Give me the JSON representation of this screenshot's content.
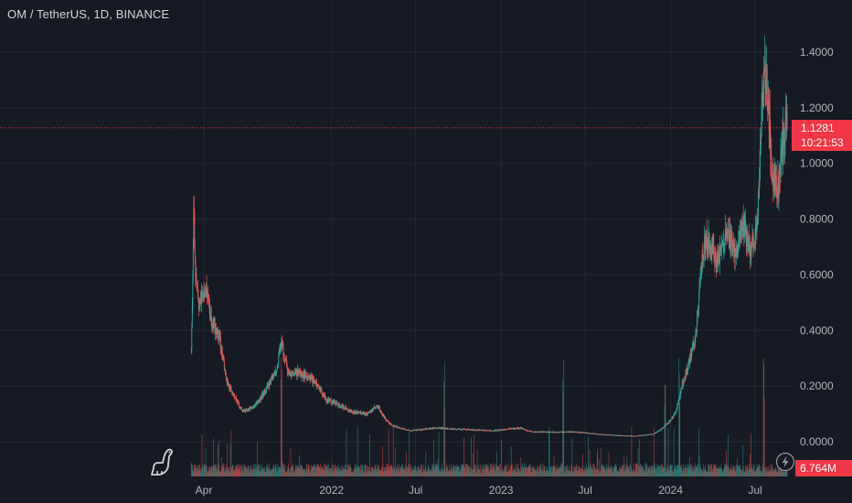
{
  "header": {
    "title": "OM / TetherUS, 1D, BINANCE"
  },
  "last_price": {
    "value": "1.1281",
    "countdown": "10:21:53"
  },
  "volume": {
    "label": "6.764M"
  },
  "icons": {
    "logo": "tradingview-dino-icon",
    "bolt": "lightning-icon"
  },
  "colors": {
    "up": "#26a69a",
    "down": "#ef5350",
    "grid": "#242834",
    "axis_text": "#b2b5be",
    "price_line": "#f23645"
  },
  "chart_data": {
    "type": "candlestick",
    "title": "OM / TetherUS, 1D, BINANCE",
    "ylim": [
      0.0,
      1.4
    ],
    "y_ticks": [
      "1.4000",
      "1.2000",
      "1.0000",
      "0.8000",
      "0.6000",
      "0.4000",
      "0.2000",
      "0.0000"
    ],
    "y_tick_values": [
      1.4,
      1.2,
      1.0,
      0.8,
      0.6,
      0.4,
      0.2,
      0.0
    ],
    "x_ticks": [
      "Apr",
      "2022",
      "Jul",
      "2023",
      "Jul",
      "2024",
      "Jul"
    ],
    "x_tick_dates": [
      "2021-04-01",
      "2022-01-01",
      "2022-07-01",
      "2023-01-01",
      "2023-07-01",
      "2024-01-01",
      "2024-07-01"
    ],
    "last_price": 1.1281,
    "price_anchors": [
      [
        "2021-03-05",
        0.33
      ],
      [
        "2021-03-08",
        0.62
      ],
      [
        "2021-03-10",
        0.88
      ],
      [
        "2021-03-14",
        0.6
      ],
      [
        "2021-03-20",
        0.5
      ],
      [
        "2021-04-05",
        0.55
      ],
      [
        "2021-04-20",
        0.42
      ],
      [
        "2021-05-05",
        0.38
      ],
      [
        "2021-05-20",
        0.22
      ],
      [
        "2021-06-10",
        0.15
      ],
      [
        "2021-06-25",
        0.11
      ],
      [
        "2021-07-20",
        0.13
      ],
      [
        "2021-08-10",
        0.18
      ],
      [
        "2021-09-05",
        0.26
      ],
      [
        "2021-09-15",
        0.36
      ],
      [
        "2021-10-01",
        0.24
      ],
      [
        "2021-10-20",
        0.25
      ],
      [
        "2021-11-15",
        0.23
      ],
      [
        "2021-12-05",
        0.2
      ],
      [
        "2021-12-20",
        0.15
      ],
      [
        "2022-01-10",
        0.14
      ],
      [
        "2022-02-10",
        0.11
      ],
      [
        "2022-03-20",
        0.1
      ],
      [
        "2022-04-10",
        0.13
      ],
      [
        "2022-05-10",
        0.06
      ],
      [
        "2022-06-20",
        0.04
      ],
      [
        "2022-08-15",
        0.05
      ],
      [
        "2022-10-01",
        0.045
      ],
      [
        "2022-12-15",
        0.04
      ],
      [
        "2023-02-10",
        0.05
      ],
      [
        "2023-03-10",
        0.035
      ],
      [
        "2023-06-15",
        0.035
      ],
      [
        "2023-08-15",
        0.025
      ],
      [
        "2023-10-15",
        0.02
      ],
      [
        "2023-11-25",
        0.028
      ],
      [
        "2023-12-15",
        0.05
      ],
      [
        "2024-01-10",
        0.1
      ],
      [
        "2024-01-25",
        0.2
      ],
      [
        "2024-02-15",
        0.32
      ],
      [
        "2024-02-25",
        0.4
      ],
      [
        "2024-03-05",
        0.58
      ],
      [
        "2024-03-12",
        0.7
      ],
      [
        "2024-03-22",
        0.72
      ],
      [
        "2024-04-10",
        0.65
      ],
      [
        "2024-05-01",
        0.75
      ],
      [
        "2024-05-20",
        0.68
      ],
      [
        "2024-06-05",
        0.78
      ],
      [
        "2024-06-20",
        0.7
      ],
      [
        "2024-07-05",
        0.75
      ],
      [
        "2024-07-12",
        1.1
      ],
      [
        "2024-07-20",
        1.3
      ],
      [
        "2024-07-25",
        1.33
      ],
      [
        "2024-08-01",
        1.15
      ],
      [
        "2024-08-06",
        0.95
      ],
      [
        "2024-08-20",
        0.9
      ],
      [
        "2024-08-30",
        1.1
      ],
      [
        "2024-09-08",
        1.13
      ]
    ],
    "volume_spike_dates": [
      "2021-09-15",
      "2022-09-01",
      "2023-05-15",
      "2023-12-20",
      "2024-01-20",
      "2024-07-20"
    ]
  }
}
